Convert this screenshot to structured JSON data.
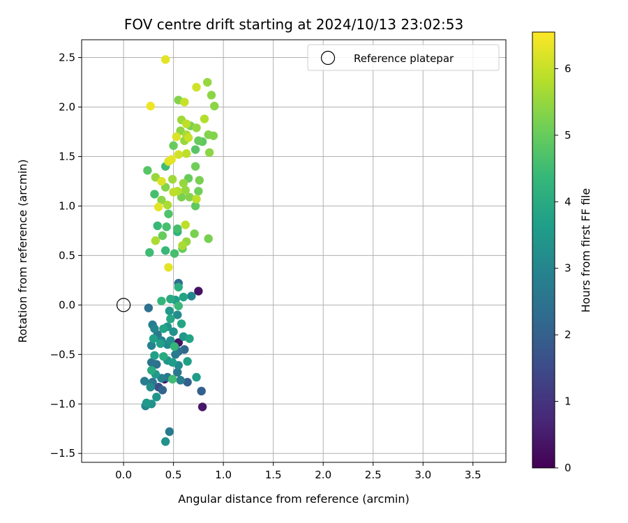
{
  "chart_data": {
    "type": "scatter",
    "title": "FOV centre drift starting at 2024/10/13 23:02:53",
    "xlabel": "Angular distance from reference (arcmin)",
    "ylabel": "Rotation from reference (arcmin)",
    "xlim": [
      -0.42,
      3.83
    ],
    "ylim": [
      -1.59,
      2.68
    ],
    "xticks": [
      0.0,
      0.5,
      1.0,
      1.5,
      2.0,
      2.5,
      3.0,
      3.5
    ],
    "xtick_labels": [
      "0.0",
      "0.5",
      "1.0",
      "1.5",
      "2.0",
      "2.5",
      "3.0",
      "3.5"
    ],
    "yticks": [
      -1.5,
      -1.0,
      -0.5,
      0.0,
      0.5,
      1.0,
      1.5,
      2.0,
      2.5
    ],
    "ytick_labels": [
      "−1.5",
      "−1.0",
      "−0.5",
      "0.0",
      "0.5",
      "1.0",
      "1.5",
      "2.0",
      "2.5"
    ],
    "grid": true,
    "legend": {
      "placement": "top-right",
      "entries": [
        "Reference platepar"
      ]
    },
    "reference_point": {
      "x": 0.0,
      "y": 0.0
    },
    "colorbar": {
      "label": "Hours from first FF file",
      "min": 0,
      "max": 6.55,
      "ticks": [
        0,
        1,
        2,
        3,
        4,
        5,
        6
      ],
      "tick_labels": [
        "0",
        "1",
        "2",
        "3",
        "4",
        "5",
        "6"
      ],
      "colormap": [
        "#440154",
        "#482878",
        "#3e4989",
        "#31688e",
        "#26828e",
        "#1f9e89",
        "#35b779",
        "#6ece58",
        "#b5de2b",
        "#fde725"
      ]
    },
    "points": [
      {
        "x": 0.42,
        "y": 2.48,
        "c": 6.3
      },
      {
        "x": 0.27,
        "y": 2.01,
        "c": 6.4
      },
      {
        "x": 0.84,
        "y": 2.25,
        "c": 5.5
      },
      {
        "x": 0.73,
        "y": 2.2,
        "c": 6.1
      },
      {
        "x": 0.88,
        "y": 2.12,
        "c": 5.4
      },
      {
        "x": 0.55,
        "y": 2.07,
        "c": 5.3
      },
      {
        "x": 0.61,
        "y": 2.05,
        "c": 6.0
      },
      {
        "x": 0.91,
        "y": 2.01,
        "c": 5.4
      },
      {
        "x": 0.58,
        "y": 1.87,
        "c": 5.6
      },
      {
        "x": 0.81,
        "y": 1.88,
        "c": 5.8
      },
      {
        "x": 0.63,
        "y": 1.83,
        "c": 5.9
      },
      {
        "x": 0.67,
        "y": 1.81,
        "c": 5.2
      },
      {
        "x": 0.57,
        "y": 1.76,
        "c": 5.4
      },
      {
        "x": 0.73,
        "y": 1.79,
        "c": 5.5
      },
      {
        "x": 0.85,
        "y": 1.72,
        "c": 5.3
      },
      {
        "x": 0.9,
        "y": 1.71,
        "c": 5.3
      },
      {
        "x": 0.53,
        "y": 1.7,
        "c": 6.2
      },
      {
        "x": 0.63,
        "y": 1.72,
        "c": 5.7
      },
      {
        "x": 0.65,
        "y": 1.69,
        "c": 6.0
      },
      {
        "x": 0.61,
        "y": 1.66,
        "c": 5.5
      },
      {
        "x": 0.75,
        "y": 1.66,
        "c": 5.0
      },
      {
        "x": 0.79,
        "y": 1.65,
        "c": 4.9
      },
      {
        "x": 0.5,
        "y": 1.61,
        "c": 5.0
      },
      {
        "x": 0.72,
        "y": 1.57,
        "c": 4.8
      },
      {
        "x": 0.86,
        "y": 1.54,
        "c": 5.4
      },
      {
        "x": 0.63,
        "y": 1.53,
        "c": 5.9
      },
      {
        "x": 0.55,
        "y": 1.52,
        "c": 6.1
      },
      {
        "x": 0.48,
        "y": 1.47,
        "c": 6.3
      },
      {
        "x": 0.45,
        "y": 1.45,
        "c": 6.2
      },
      {
        "x": 0.42,
        "y": 1.4,
        "c": 4.5
      },
      {
        "x": 0.72,
        "y": 1.4,
        "c": 5.1
      },
      {
        "x": 0.24,
        "y": 1.36,
        "c": 4.8
      },
      {
        "x": 0.32,
        "y": 1.29,
        "c": 5.5
      },
      {
        "x": 0.38,
        "y": 1.25,
        "c": 6.2
      },
      {
        "x": 0.49,
        "y": 1.27,
        "c": 5.6
      },
      {
        "x": 0.6,
        "y": 1.23,
        "c": 5.5
      },
      {
        "x": 0.65,
        "y": 1.28,
        "c": 5.0
      },
      {
        "x": 0.76,
        "y": 1.26,
        "c": 5.2
      },
      {
        "x": 0.42,
        "y": 1.19,
        "c": 5.3
      },
      {
        "x": 0.54,
        "y": 1.15,
        "c": 5.8
      },
      {
        "x": 0.5,
        "y": 1.14,
        "c": 5.9
      },
      {
        "x": 0.62,
        "y": 1.16,
        "c": 5.5
      },
      {
        "x": 0.75,
        "y": 1.15,
        "c": 5.1
      },
      {
        "x": 0.31,
        "y": 1.12,
        "c": 4.6
      },
      {
        "x": 0.58,
        "y": 1.09,
        "c": 5.2
      },
      {
        "x": 0.66,
        "y": 1.09,
        "c": 5.3
      },
      {
        "x": 0.73,
        "y": 1.07,
        "c": 5.9
      },
      {
        "x": 0.38,
        "y": 1.06,
        "c": 5.4
      },
      {
        "x": 0.44,
        "y": 1.01,
        "c": 5.7
      },
      {
        "x": 0.35,
        "y": 0.99,
        "c": 6.3
      },
      {
        "x": 0.72,
        "y": 1.0,
        "c": 4.9
      },
      {
        "x": 0.45,
        "y": 0.92,
        "c": 4.7
      },
      {
        "x": 0.34,
        "y": 0.8,
        "c": 4.4
      },
      {
        "x": 0.43,
        "y": 0.79,
        "c": 4.6
      },
      {
        "x": 0.62,
        "y": 0.81,
        "c": 5.9
      },
      {
        "x": 0.54,
        "y": 0.77,
        "c": 4.6
      },
      {
        "x": 0.54,
        "y": 0.74,
        "c": 4.2
      },
      {
        "x": 0.39,
        "y": 0.7,
        "c": 5.0
      },
      {
        "x": 0.71,
        "y": 0.72,
        "c": 5.2
      },
      {
        "x": 0.85,
        "y": 0.67,
        "c": 5.2
      },
      {
        "x": 0.32,
        "y": 0.65,
        "c": 5.7
      },
      {
        "x": 0.63,
        "y": 0.64,
        "c": 5.5
      },
      {
        "x": 0.59,
        "y": 0.6,
        "c": 5.7
      },
      {
        "x": 0.59,
        "y": 0.57,
        "c": 5.0
      },
      {
        "x": 0.26,
        "y": 0.53,
        "c": 4.5
      },
      {
        "x": 0.42,
        "y": 0.55,
        "c": 4.4
      },
      {
        "x": 0.51,
        "y": 0.52,
        "c": 4.6
      },
      {
        "x": 0.45,
        "y": 0.38,
        "c": 6.3
      },
      {
        "x": 0.55,
        "y": 0.22,
        "c": 2.3
      },
      {
        "x": 0.75,
        "y": 0.14,
        "c": 0.3
      },
      {
        "x": 0.55,
        "y": 0.18,
        "c": 4.1
      },
      {
        "x": 0.68,
        "y": 0.09,
        "c": 3.0
      },
      {
        "x": 0.6,
        "y": 0.08,
        "c": 3.8
      },
      {
        "x": 0.38,
        "y": 0.04,
        "c": 4.3
      },
      {
        "x": 0.47,
        "y": 0.06,
        "c": 4.0
      },
      {
        "x": 0.52,
        "y": 0.05,
        "c": 3.6
      },
      {
        "x": 0.55,
        "y": -0.01,
        "c": 4.4
      },
      {
        "x": 0.25,
        "y": -0.03,
        "c": 2.4
      },
      {
        "x": 0.46,
        "y": -0.06,
        "c": 3.5
      },
      {
        "x": 0.54,
        "y": -0.1,
        "c": 3.2
      },
      {
        "x": 0.47,
        "y": -0.14,
        "c": 3.9
      },
      {
        "x": 0.29,
        "y": -0.2,
        "c": 2.8
      },
      {
        "x": 0.58,
        "y": -0.19,
        "c": 3.8
      },
      {
        "x": 0.44,
        "y": -0.22,
        "c": 3.4
      },
      {
        "x": 0.31,
        "y": -0.24,
        "c": 3.0
      },
      {
        "x": 0.4,
        "y": -0.24,
        "c": 3.8
      },
      {
        "x": 0.5,
        "y": -0.27,
        "c": 3.3
      },
      {
        "x": 0.34,
        "y": -0.3,
        "c": 2.6
      },
      {
        "x": 0.38,
        "y": -0.36,
        "c": 2.9
      },
      {
        "x": 0.55,
        "y": -0.38,
        "c": 0.3
      },
      {
        "x": 0.3,
        "y": -0.34,
        "c": 3.7
      },
      {
        "x": 0.47,
        "y": -0.36,
        "c": 3.3
      },
      {
        "x": 0.6,
        "y": -0.32,
        "c": 3.5
      },
      {
        "x": 0.66,
        "y": -0.34,
        "c": 3.8
      },
      {
        "x": 0.37,
        "y": -0.39,
        "c": 3.7
      },
      {
        "x": 0.44,
        "y": -0.4,
        "c": 3.1
      },
      {
        "x": 0.51,
        "y": -0.42,
        "c": 4.3
      },
      {
        "x": 0.28,
        "y": -0.41,
        "c": 2.9
      },
      {
        "x": 0.55,
        "y": -0.47,
        "c": 2.5
      },
      {
        "x": 0.61,
        "y": -0.45,
        "c": 2.2
      },
      {
        "x": 0.31,
        "y": -0.51,
        "c": 3.7
      },
      {
        "x": 0.4,
        "y": -0.52,
        "c": 4.0
      },
      {
        "x": 0.52,
        "y": -0.5,
        "c": 2.7
      },
      {
        "x": 0.44,
        "y": -0.56,
        "c": 3.4
      },
      {
        "x": 0.49,
        "y": -0.58,
        "c": 3.6
      },
      {
        "x": 0.28,
        "y": -0.58,
        "c": 2.5
      },
      {
        "x": 0.64,
        "y": -0.57,
        "c": 3.7
      },
      {
        "x": 0.33,
        "y": -0.6,
        "c": 2.4
      },
      {
        "x": 0.55,
        "y": -0.61,
        "c": 3.1
      },
      {
        "x": 0.28,
        "y": -0.66,
        "c": 4.0
      },
      {
        "x": 0.54,
        "y": -0.68,
        "c": 2.6
      },
      {
        "x": 0.32,
        "y": -0.7,
        "c": 3.5
      },
      {
        "x": 0.38,
        "y": -0.74,
        "c": 2.9
      },
      {
        "x": 0.44,
        "y": -0.73,
        "c": 2.7
      },
      {
        "x": 0.41,
        "y": -0.75,
        "c": 0.4
      },
      {
        "x": 0.49,
        "y": -0.75,
        "c": 4.5
      },
      {
        "x": 0.57,
        "y": -0.76,
        "c": 2.8
      },
      {
        "x": 0.64,
        "y": -0.78,
        "c": 2.0
      },
      {
        "x": 0.73,
        "y": -0.73,
        "c": 3.6
      },
      {
        "x": 0.21,
        "y": -0.77,
        "c": 2.8
      },
      {
        "x": 0.29,
        "y": -0.78,
        "c": 2.6
      },
      {
        "x": 0.35,
        "y": -0.83,
        "c": 1.6
      },
      {
        "x": 0.39,
        "y": -0.86,
        "c": 2.1
      },
      {
        "x": 0.27,
        "y": -0.83,
        "c": 3.2
      },
      {
        "x": 0.78,
        "y": -0.87,
        "c": 2.0
      },
      {
        "x": 0.33,
        "y": -0.93,
        "c": 3.4
      },
      {
        "x": 0.23,
        "y": -0.99,
        "c": 3.5
      },
      {
        "x": 0.28,
        "y": -1.0,
        "c": 3.3
      },
      {
        "x": 0.22,
        "y": -1.02,
        "c": 3.0
      },
      {
        "x": 0.79,
        "y": -1.03,
        "c": 0.4
      },
      {
        "x": 0.46,
        "y": -1.28,
        "c": 2.7
      },
      {
        "x": 0.42,
        "y": -1.38,
        "c": 3.3
      }
    ]
  }
}
